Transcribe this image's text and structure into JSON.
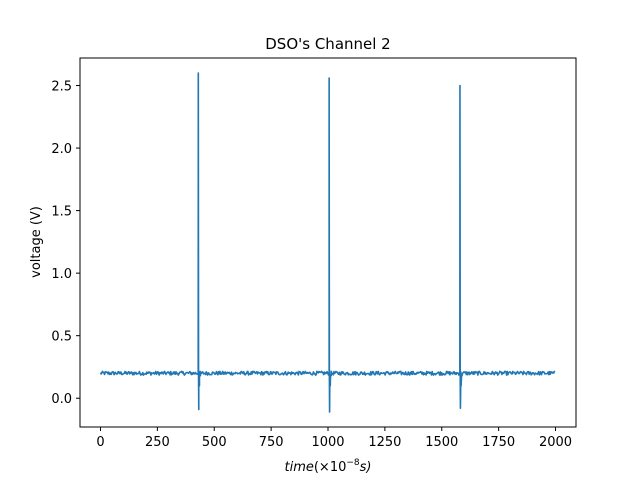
{
  "chart_data": {
    "type": "line",
    "title": "DSO's Channel 2",
    "xlabel_main": "time",
    "xlabel_unit": "(×10",
    "xlabel_exp": "−8",
    "xlabel_tail": "s)",
    "ylabel": "voltage (V)",
    "xlim": [
      -90,
      2090
    ],
    "ylim": [
      -0.23,
      2.72
    ],
    "xticks": [
      0,
      250,
      500,
      750,
      1000,
      1250,
      1500,
      1750,
      2000
    ],
    "xtick_labels": [
      "0",
      "250",
      "500",
      "750",
      "1000",
      "1250",
      "1500",
      "1750",
      "2000"
    ],
    "yticks": [
      0.0,
      0.5,
      1.0,
      1.5,
      2.0,
      2.5
    ],
    "ytick_labels": [
      "0.0",
      "0.5",
      "1.0",
      "1.5",
      "2.0",
      "2.5"
    ],
    "grid": false,
    "series": [
      {
        "color": "#1f77b4",
        "x_start": 0,
        "x_end": 2000,
        "baseline": 0.2,
        "noise_amplitude": 0.015,
        "spikes": [
          {
            "x": 430,
            "peak": 2.6,
            "trough": -0.09
          },
          {
            "x": 1005,
            "peak": 2.56,
            "trough": -0.11
          },
          {
            "x": 1580,
            "peak": 2.5,
            "trough": -0.08
          }
        ]
      }
    ]
  }
}
